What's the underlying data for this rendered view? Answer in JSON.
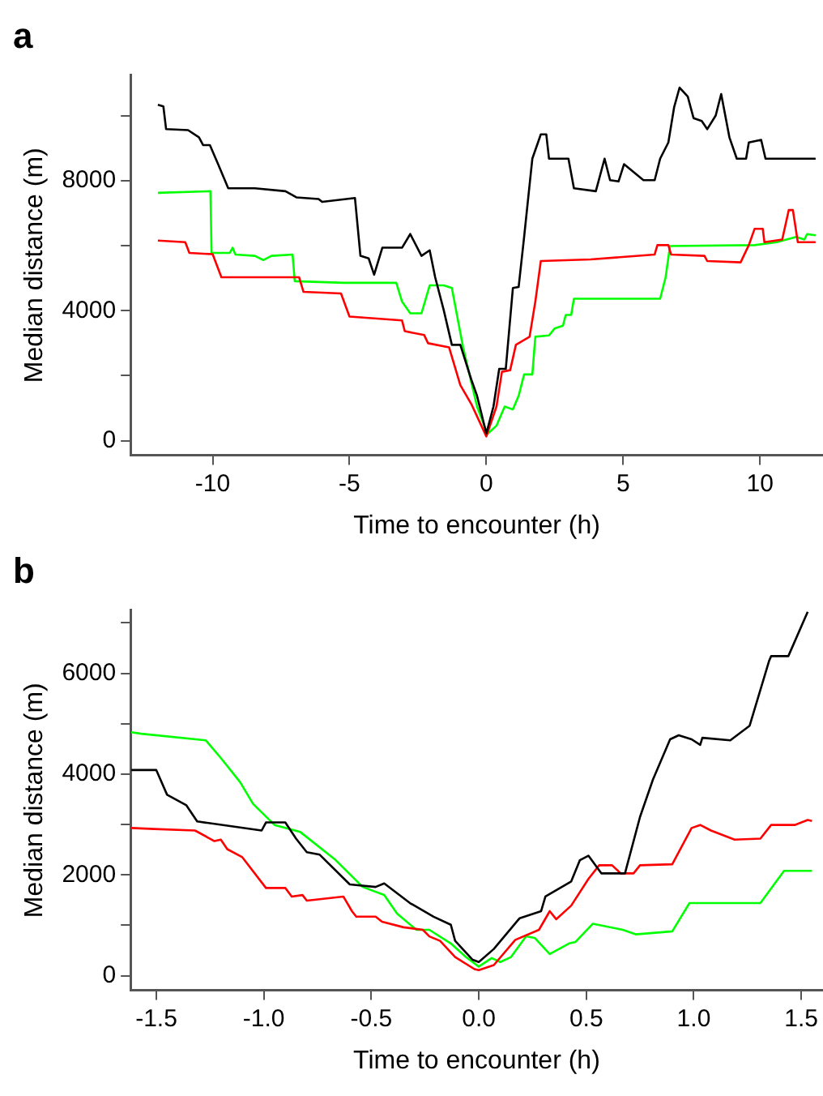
{
  "chart_data": [
    {
      "type": "line",
      "title": "a",
      "xlabel": "Time to encounter (h)",
      "ylabel": "Median distance (m)",
      "xlim": [
        -13,
        12.3
      ],
      "ylim": [
        -450,
        11250
      ],
      "xticks": [
        -10,
        -5,
        0,
        5,
        10
      ],
      "yticks": [
        0,
        {
          "value": 2000,
          "label": null
        },
        4000,
        {
          "value": 6000,
          "label": null
        },
        8000,
        {
          "value": 10000,
          "label": null
        }
      ],
      "grid": false,
      "legend": false,
      "series": [
        {
          "color": "#000000",
          "x": [
            -12.0,
            -11.8,
            -11.7,
            -10.9,
            -10.5,
            -10.35,
            -10.1,
            -9.8,
            -9.43,
            -8.46,
            -7.34,
            -6.94,
            -6.13,
            -6.0,
            -4.8,
            -4.6,
            -4.3,
            -4.1,
            -3.8,
            -3.08,
            -2.78,
            -2.37,
            -2.07,
            -1.87,
            -1.56,
            -1.26,
            -0.95,
            -0.55,
            -0.34,
            0,
            0.26,
            0.47,
            0.71,
            0.97,
            1.18,
            1.38,
            1.68,
            1.99,
            2.19,
            2.29,
            3.0,
            3.2,
            4.0,
            4.32,
            4.52,
            4.83,
            5.03,
            5.74,
            6.15,
            6.35,
            6.65,
            6.86,
            7.06,
            7.36,
            7.57,
            7.87,
            8.07,
            8.38,
            8.58,
            8.88,
            9.15,
            9.49,
            9.59,
            10.04,
            10.2,
            12.03
          ],
          "values": [
            10340,
            10290,
            9590,
            9560,
            9340,
            9100,
            9100,
            8510,
            7770,
            7770,
            7680,
            7490,
            7440,
            7350,
            7470,
            5690,
            5610,
            5110,
            5940,
            5940,
            6360,
            5690,
            5860,
            5030,
            4030,
            2950,
            2950,
            1880,
            1380,
            220,
            1050,
            2210,
            2210,
            4700,
            4730,
            6270,
            8680,
            9430,
            9430,
            8680,
            8680,
            7770,
            7680,
            8680,
            8020,
            7980,
            8510,
            8020,
            8020,
            8680,
            9180,
            10260,
            10870,
            10590,
            9930,
            9840,
            9590,
            10010,
            10670,
            9340,
            8680,
            8680,
            9180,
            9260,
            8680,
            8680
          ]
        },
        {
          "color": "#ff0000",
          "x": [
            -12,
            -11,
            -10.85,
            -10,
            -9.68,
            -6.84,
            -6.68,
            -5.31,
            -5.0,
            -3.08,
            -2.98,
            -2.27,
            -2.13,
            -1.36,
            -0.95,
            -0.55,
            0,
            0.37,
            0.57,
            0.87,
            1.08,
            1.58,
            1.79,
            1.99,
            3.81,
            6.15,
            6.25,
            6.65,
            6.75,
            7.97,
            8.07,
            9.29,
            9.59,
            9.8,
            10.1,
            10.16,
            10.81,
            11.05,
            11.2,
            11.38,
            12.03
          ],
          "values": [
            6160,
            6110,
            5780,
            5740,
            5030,
            5030,
            4580,
            4530,
            3820,
            3700,
            3370,
            3250,
            3000,
            2870,
            1710,
            1130,
            130,
            1050,
            2120,
            2170,
            2950,
            3200,
            4280,
            5530,
            5580,
            5730,
            6020,
            6020,
            5730,
            5690,
            5530,
            5490,
            6020,
            6520,
            6520,
            6110,
            6190,
            7100,
            7100,
            6110,
            6110
          ]
        },
        {
          "color": "#00ff00",
          "x": [
            -12,
            -10.08,
            -10.04,
            -9.37,
            -9.27,
            -9.17,
            -8.46,
            -8.15,
            -7.85,
            -7.08,
            -7.0,
            -5.21,
            -3.29,
            -3.08,
            -2.78,
            -2.37,
            -2.07,
            -1.56,
            -1.26,
            -0.85,
            -0.34,
            -0.04,
            0.06,
            0.37,
            0.67,
            0.97,
            1.18,
            1.38,
            1.68,
            1.79,
            2.29,
            2.49,
            2.8,
            2.9,
            3.1,
            3.2,
            6.35,
            6.55,
            6.71,
            9.8,
            10.61,
            11.32,
            11.62,
            11.72,
            12.03
          ],
          "values": [
            7630,
            7680,
            5780,
            5780,
            5940,
            5730,
            5690,
            5560,
            5690,
            5730,
            4910,
            4860,
            4860,
            4280,
            3920,
            3920,
            4780,
            4780,
            4700,
            2870,
            1050,
            380,
            220,
            460,
            1050,
            960,
            1380,
            2040,
            2040,
            3200,
            3240,
            3450,
            3540,
            3870,
            3870,
            4370,
            4370,
            5030,
            5990,
            6020,
            6110,
            6270,
            6190,
            6360,
            6320
          ]
        }
      ]
    },
    {
      "type": "line",
      "title": "b",
      "xlabel": "Time to encounter (h)",
      "ylabel": "Median distance (m)",
      "xlim": [
        -1.62,
        1.6
      ],
      "ylim": [
        -290,
        7250
      ],
      "xticks": [
        {
          "value": -1.5,
          "label": "-1.5"
        },
        {
          "value": -1,
          "label": "-1.0"
        },
        {
          "value": -0.5,
          "label": "-0.5"
        },
        {
          "value": 0,
          "label": "0.0"
        },
        {
          "value": 0.5,
          "label": "0.5"
        },
        {
          "value": 1,
          "label": "1.0"
        },
        {
          "value": 1.5,
          "label": "1.5"
        }
      ],
      "yticks": [
        0,
        {
          "value": 1000,
          "label": null
        },
        2000,
        {
          "value": 3000,
          "label": null
        },
        4000,
        {
          "value": 5000,
          "label": null
        },
        6000,
        {
          "value": 7000,
          "label": null
        }
      ],
      "grid": false,
      "legend": false,
      "series": [
        {
          "color": "#000000",
          "x": [
            -1.617,
            -1.5,
            -1.45,
            -1.36,
            -1.31,
            -1.01,
            -0.99,
            -0.9,
            -0.85,
            -0.8,
            -0.74,
            -0.6,
            -0.48,
            -0.44,
            -0.32,
            -0.21,
            -0.13,
            -0.11,
            -0.03,
            0,
            0.07,
            0.19,
            0.29,
            0.31,
            0.43,
            0.47,
            0.51,
            0.57,
            0.68,
            0.75,
            0.81,
            0.89,
            0.93,
            0.99,
            1.03,
            1.04,
            1.17,
            1.26,
            1.35,
            1.36,
            1.44,
            1.53
          ],
          "values": [
            4080,
            4080,
            3590,
            3380,
            3060,
            2880,
            3040,
            3040,
            2720,
            2450,
            2400,
            1810,
            1760,
            1830,
            1440,
            1170,
            1010,
            690,
            320,
            270,
            530,
            1140,
            1280,
            1570,
            1870,
            2290,
            2380,
            2030,
            2030,
            3150,
            3890,
            4690,
            4770,
            4690,
            4580,
            4720,
            4670,
            4960,
            6240,
            6340,
            6340,
            7220
          ]
        },
        {
          "color": "#ff0000",
          "x": [
            -1.617,
            -1.51,
            -1.32,
            -1.23,
            -1.2,
            -1.17,
            -1.1,
            -0.99,
            -0.9,
            -0.87,
            -0.82,
            -0.8,
            -0.63,
            -0.59,
            -0.57,
            -0.48,
            -0.45,
            -0.35,
            -0.26,
            -0.23,
            -0.18,
            -0.11,
            -0.02,
            0,
            0.07,
            0.17,
            0.28,
            0.33,
            0.36,
            0.43,
            0.51,
            0.56,
            0.62,
            0.66,
            0.72,
            0.75,
            0.9,
            0.99,
            1.03,
            1.08,
            1.19,
            1.31,
            1.36,
            1.47,
            1.53,
            1.55
          ],
          "values": [
            2930,
            2910,
            2880,
            2670,
            2700,
            2510,
            2350,
            1740,
            1740,
            1570,
            1600,
            1490,
            1570,
            1280,
            1170,
            1170,
            1070,
            960,
            910,
            780,
            690,
            370,
            130,
            110,
            210,
            710,
            910,
            1280,
            1120,
            1390,
            1920,
            2190,
            2190,
            2030,
            2030,
            2190,
            2210,
            2930,
            2990,
            2880,
            2700,
            2720,
            2990,
            2990,
            3090,
            3070
          ]
        },
        {
          "color": "#00ff00",
          "x": [
            -1.617,
            -1.57,
            -1.27,
            -1.2,
            -1.11,
            -1.05,
            -0.95,
            -0.83,
            -0.67,
            -0.54,
            -0.44,
            -0.38,
            -0.29,
            -0.23,
            -0.13,
            -0.06,
            0,
            0.06,
            0.1,
            0.15,
            0.22,
            0.26,
            0.33,
            0.42,
            0.45,
            0.53,
            0.67,
            0.73,
            0.9,
            0.98,
            1.31,
            1.42,
            1.55
          ],
          "values": [
            4830,
            4800,
            4670,
            4320,
            3840,
            3410,
            2990,
            2850,
            2310,
            1760,
            1600,
            1230,
            910,
            910,
            640,
            370,
            180,
            350,
            270,
            370,
            780,
            750,
            430,
            640,
            670,
            1030,
            910,
            820,
            880,
            1440,
            1440,
            2080,
            2080
          ]
        }
      ]
    }
  ]
}
